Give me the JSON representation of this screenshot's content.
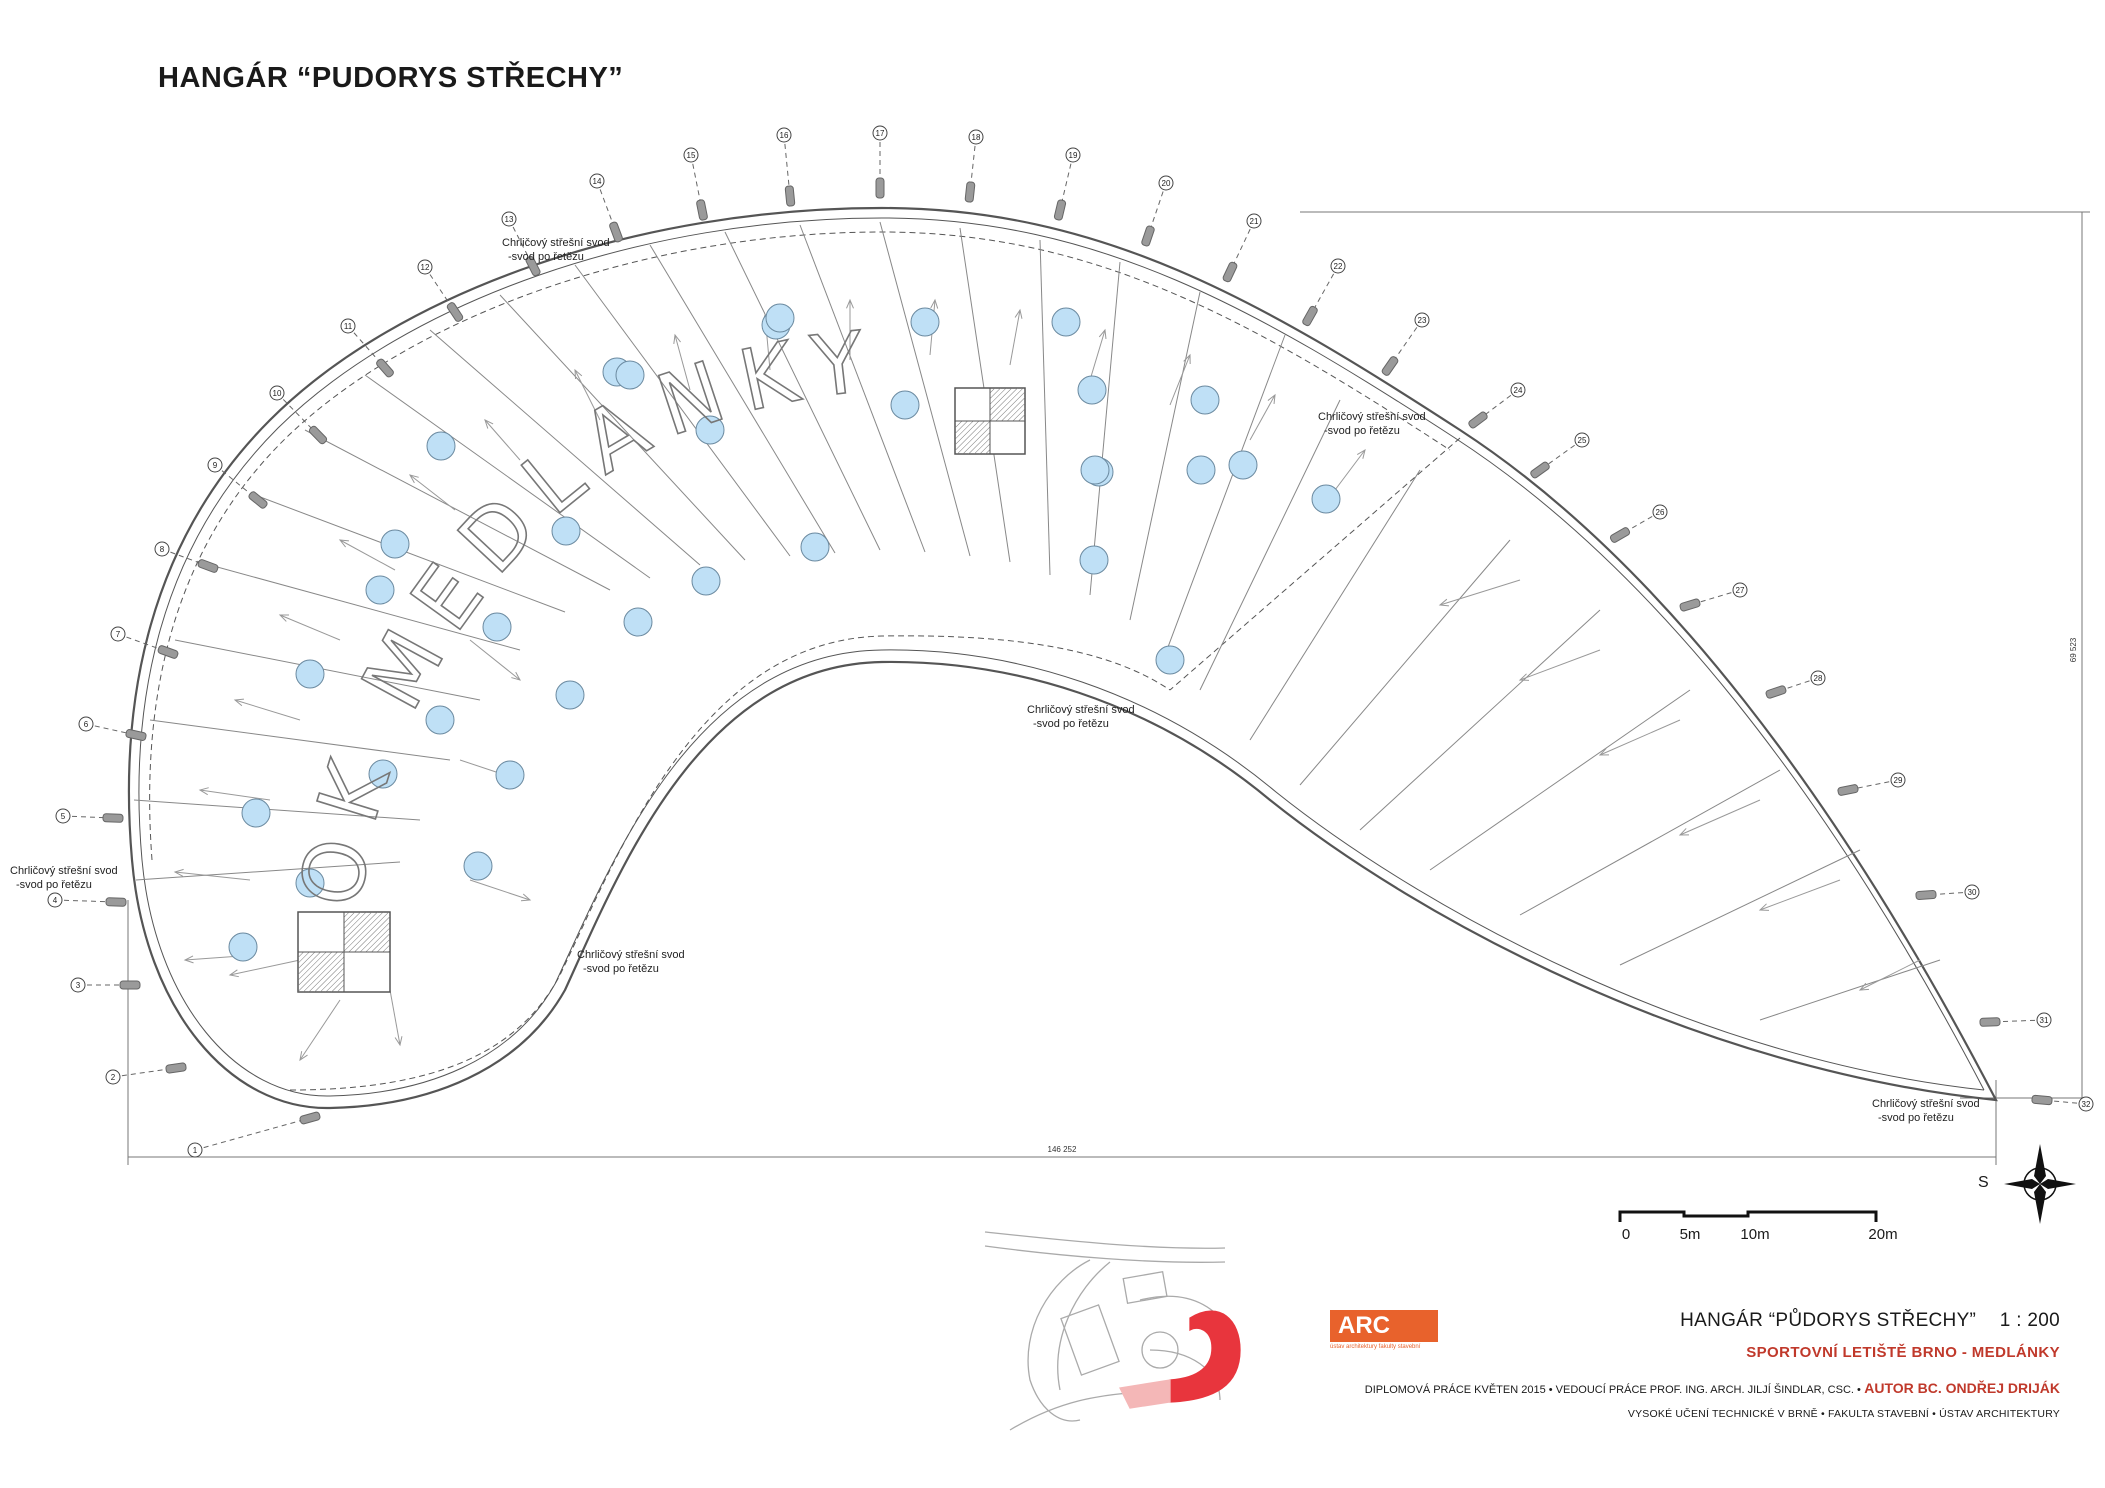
{
  "sheet": {
    "title": "HANGÁR “PUDORYS STŘECHY”"
  },
  "plan": {
    "roof_lettering": "OK MEDLANKY",
    "drain_label_line1": "Chrličový střešní svod",
    "drain_label_line2": "-svod po řetězu",
    "overall_width": "146 252",
    "overall_height": "69 523",
    "axis_labels": [
      "1",
      "2",
      "3",
      "4",
      "5",
      "6",
      "7",
      "8",
      "9",
      "10",
      "11",
      "12",
      "13",
      "14",
      "15",
      "16",
      "17",
      "18",
      "19",
      "20",
      "21",
      "22",
      "23",
      "24",
      "25",
      "26",
      "27",
      "28",
      "29",
      "30",
      "31",
      "32"
    ],
    "skylight_count": 36
  },
  "north_arrow": {
    "label": "S"
  },
  "scale_bar": {
    "ticks": [
      "0",
      "5m",
      "10m",
      "20m"
    ]
  },
  "title_block": {
    "logo_text": "ARC",
    "logo_subtitle": "ústav architektury fakulty stavební",
    "drawing_title": "HANGÁR “PŮDORYS STŘECHY”",
    "drawing_scale": "1 : 200",
    "project": "SPORTOVNÍ LETIŠTĚ BRNO - MEDLÁNKY",
    "credits": "DIPLOMOVÁ PRÁCE KVĚTEN 2015 • VEDOUCÍ PRÁCE  PROF. ING. ARCH. JILJÍ ŠINDLAR, CSC. •",
    "author": " AUTOR  BC. ONDŘEJ DRIJÁK",
    "school": "VYSOKÉ UČENÍ TECHNICKÉ V BRNĚ  •  FAKULTA STAVEBNÍ  •  ÚSTAV ARCHITEKTURY"
  },
  "colors": {
    "skylight_fill": "#bfe0f6",
    "accent_red": "#e8353d",
    "logo_orange": "#e8622c",
    "line": "#555555"
  }
}
